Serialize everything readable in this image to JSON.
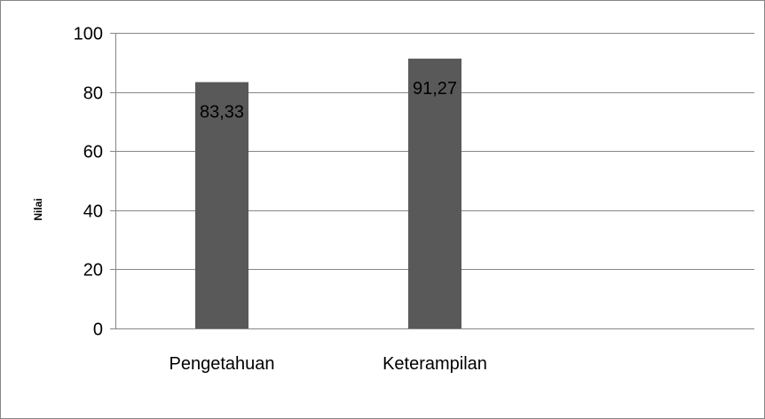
{
  "chart_data": {
    "type": "bar",
    "title": "",
    "xlabel": "",
    "ylabel": "Nilai",
    "ylim": [
      0,
      100
    ],
    "yticks": [
      0,
      20,
      40,
      60,
      80,
      100
    ],
    "categories": [
      "Pengetahuan",
      "Keterampilan"
    ],
    "values": [
      83.33,
      91.27
    ],
    "data_labels": [
      "83,33",
      "91,27"
    ],
    "grid": true,
    "legend": "none",
    "colors": {
      "bar": "#595959",
      "grid": "#868686",
      "frame": "#868686"
    }
  }
}
